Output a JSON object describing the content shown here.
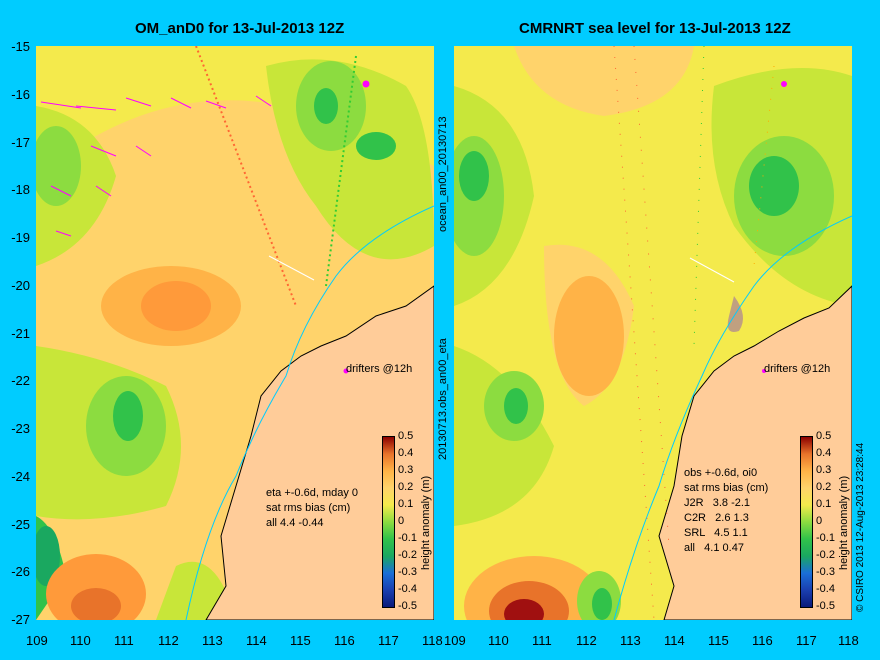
{
  "left_panel": {
    "title": "OM_anD0 for 13-Jul-2013 12Z",
    "annotation": "eta +-0.6d, mday 0\nsat rms bias (cm)\nall 4.4 -0.44",
    "drifter_label": "drifters @12h"
  },
  "right_panel": {
    "title": "CMRNRT sea level  for 13-Jul-2013 12Z",
    "annotation": "obs +-0.6d, oi0\nsat rms bias (cm)\nJ2R   3.8 -2.1\nC2R   2.6 1.3\nSRL   4.5 1.1\nall   4.1 0.47",
    "drifter_label": "drifters @12h"
  },
  "side_labels": {
    "top": "ocean_an00_20130713",
    "bottom": "20130713.obs_an00_eta",
    "copyright": "© CSIRO 2013   12-Aug-2013 23:28:44"
  },
  "y_ticks": [
    "-15",
    "-16",
    "-17",
    "-18",
    "-19",
    "-20",
    "-21",
    "-22",
    "-23",
    "-24",
    "-25",
    "-26",
    "-27"
  ],
  "x_ticks": [
    "109",
    "110",
    "111",
    "112",
    "113",
    "114",
    "115",
    "116",
    "117",
    "118"
  ],
  "colorbar": {
    "ticks": [
      "0.5",
      "0.4",
      "0.3",
      "0.2",
      "0.1",
      "0",
      "-0.1",
      "-0.2",
      "-0.3",
      "-0.4",
      "-0.5"
    ],
    "unit": "height anomaly (m)"
  },
  "colors": {
    "background": "#00ccff",
    "land": "#ffcc99",
    "coastline_contour": "#00ccff",
    "drifter": "#ff00ff"
  }
}
